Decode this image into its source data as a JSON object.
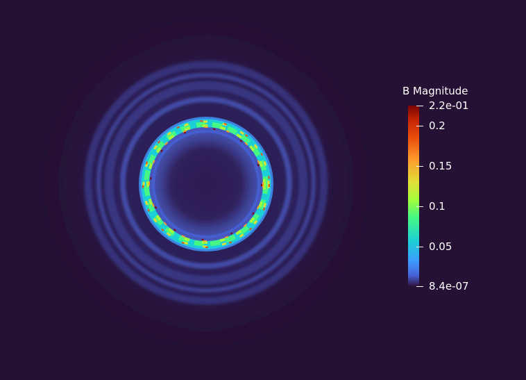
{
  "viewer": {
    "background_color": "#251133",
    "field_name": "B Magnitude"
  },
  "legend": {
    "title": "B Magnitude",
    "colormap": "turbo",
    "range": [
      8.4e-07,
      0.22
    ],
    "ticks": [
      {
        "value": 0.22,
        "label": "2.2e-01"
      },
      {
        "value": 0.2,
        "label": "0.2"
      },
      {
        "value": 0.15,
        "label": "0.15"
      },
      {
        "value": 0.1,
        "label": "0.1"
      },
      {
        "value": 0.05,
        "label": "0.05"
      },
      {
        "value": 8.4e-07,
        "label": "8.4e-07"
      }
    ]
  }
}
